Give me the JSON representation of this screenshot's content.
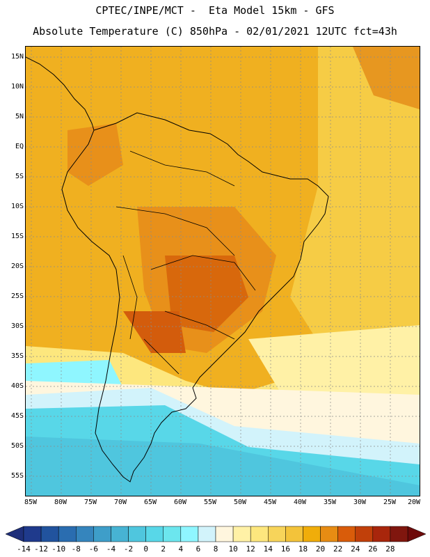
{
  "header": {
    "line1": "CPTEC/INPE/MCT -  Eta Model 15km - GFS",
    "line2": "Absolute Temperature (C) 850hPa - 02/01/2021 12UTC fct=43h"
  },
  "map": {
    "lat_labels": [
      "15N",
      "10N",
      "5N",
      "EQ",
      "5S",
      "10S",
      "15S",
      "20S",
      "25S",
      "30S",
      "35S",
      "40S",
      "45S",
      "50S",
      "55S"
    ],
    "lon_labels": [
      "85W",
      "80W",
      "75W",
      "70W",
      "65W",
      "60W",
      "55W",
      "50W",
      "45W",
      "40W",
      "35W",
      "30W",
      "25W",
      "20W"
    ]
  },
  "legend": {
    "labels": [
      "-14",
      "-12",
      "-10",
      "-8",
      "-6",
      "-4",
      "-2",
      "0",
      "2",
      "4",
      "6",
      "8",
      "10",
      "12",
      "14",
      "16",
      "18",
      "20",
      "22",
      "24",
      "26",
      "28"
    ],
    "colors": [
      "#1f3a8c",
      "#21539e",
      "#2a6db0",
      "#3585bd",
      "#3e9ec9",
      "#47b3d3",
      "#4fc6de",
      "#58d7e8",
      "#6ce6ee",
      "#8ff6ff",
      "#d2f3fb",
      "#fff6de",
      "#fff1a6",
      "#fde77e",
      "#f7d45a",
      "#f3c33a",
      "#f0ad0a",
      "#e78c13",
      "#d95c0a",
      "#c1400a",
      "#a8260c",
      "#80160e"
    ]
  }
}
